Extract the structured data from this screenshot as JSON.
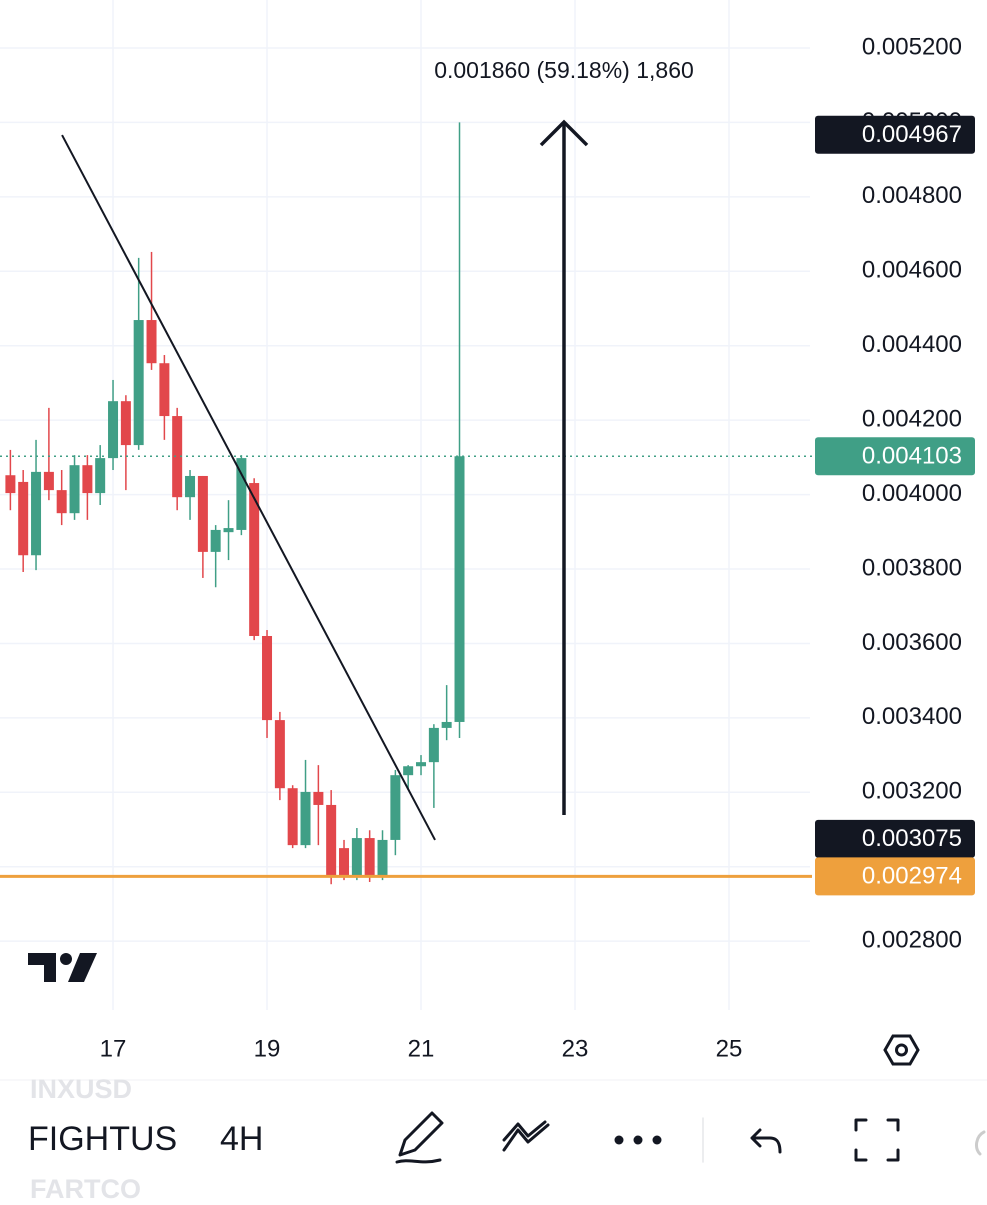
{
  "chart_data": {
    "type": "candlestick",
    "x": [
      15.667,
      15.833,
      16.0,
      16.167,
      16.333,
      16.5,
      16.667,
      16.833,
      17.0,
      17.167,
      17.333,
      17.5,
      17.667,
      17.833,
      18.0,
      18.167,
      18.333,
      18.5,
      18.667,
      18.833,
      19.0,
      19.167,
      19.333,
      19.5,
      19.667,
      19.833,
      20.0,
      20.167,
      20.333,
      20.5,
      20.667,
      20.833,
      21.0,
      21.167,
      21.333,
      21.5
    ],
    "open": [
      0.004052,
      0.004034,
      0.003837,
      0.004061,
      0.004012,
      0.00395,
      0.004079,
      0.004004,
      0.004098,
      0.004251,
      0.004133,
      0.004469,
      0.004353,
      0.004211,
      0.003993,
      0.00405,
      0.003846,
      0.003899,
      0.003905,
      0.004031,
      0.00362,
      0.003394,
      0.003211,
      0.003058,
      0.003201,
      0.003166,
      0.00305,
      0.002972,
      0.003077,
      0.002972,
      0.003072,
      0.003246,
      0.00327,
      0.003281,
      0.003373,
      0.003389
    ],
    "high": [
      0.00412,
      0.004066,
      0.004147,
      0.004233,
      0.004066,
      0.004106,
      0.004106,
      0.004133,
      0.004308,
      0.004267,
      0.004636,
      0.004652,
      0.004375,
      0.004233,
      0.004066,
      0.00405,
      0.003918,
      0.003985,
      0.004106,
      0.004044,
      0.003636,
      0.003416,
      0.003219,
      0.003287,
      0.003273,
      0.003206,
      0.003072,
      0.003104,
      0.003098,
      0.003098,
      0.00326,
      0.003273,
      0.0033,
      0.003383,
      0.003488,
      0.005
    ],
    "low": [
      0.003958,
      0.003792,
      0.003797,
      0.003985,
      0.003918,
      0.003932,
      0.003932,
      0.003972,
      0.004066,
      0.004012,
      0.00412,
      0.004335,
      0.004147,
      0.003958,
      0.003932,
      0.003776,
      0.003751,
      0.003824,
      0.003891,
      0.003609,
      0.003346,
      0.003179,
      0.00305,
      0.00305,
      0.003058,
      0.002953,
      0.002964,
      0.002964,
      0.002959,
      0.002964,
      0.003031,
      0.003206,
      0.003246,
      0.003158,
      0.00334,
      0.003346
    ],
    "close": [
      0.004004,
      0.003837,
      0.004061,
      0.004012,
      0.00395,
      0.004079,
      0.004004,
      0.004098,
      0.004251,
      0.004133,
      0.004469,
      0.004353,
      0.004211,
      0.003993,
      0.00405,
      0.003846,
      0.003905,
      0.00391,
      0.004098,
      0.00362,
      0.003394,
      0.003211,
      0.003058,
      0.003201,
      0.003166,
      0.002972,
      0.002972,
      0.003077,
      0.002972,
      0.003072,
      0.003246,
      0.00327,
      0.003281,
      0.003373,
      0.003389,
      0.004103
    ],
    "up_color": "#409f86",
    "down_color": "#e2474b",
    "xlim": [
      15.532,
      26.052
    ],
    "xticks": [
      17,
      19,
      21,
      23,
      25
    ],
    "ylim": [
      0.002615,
      0.005329
    ],
    "yticks": [
      {
        "value": 0.0052,
        "label": "0.005200"
      },
      {
        "value": 0.005,
        "label": "0.005000"
      },
      {
        "value": 0.0048,
        "label": "0.004800"
      },
      {
        "value": 0.0046,
        "label": "0.004600"
      },
      {
        "value": 0.0044,
        "label": "0.004400"
      },
      {
        "value": 0.0042,
        "label": "0.004200"
      },
      {
        "value": 0.004,
        "label": "0.004000"
      },
      {
        "value": 0.0038,
        "label": "0.003800"
      },
      {
        "value": 0.0036,
        "label": "0.003600"
      },
      {
        "value": 0.0034,
        "label": "0.003400"
      },
      {
        "value": 0.0032,
        "label": "0.003200"
      },
      {
        "value": 0.003,
        "label": "0.003000"
      },
      {
        "value": 0.0028,
        "label": "0.002800"
      }
    ],
    "grid": true,
    "price_labels": [
      {
        "value": 0.004967,
        "color": "#131722",
        "line": "none"
      },
      {
        "value": 0.004103,
        "color": "#409f86",
        "line": "dotted"
      },
      {
        "value": 0.003075,
        "color": "#131722",
        "line": "none"
      },
      {
        "value": 0.002974,
        "color": "#eea03d",
        "line": "solid"
      }
    ],
    "trendline": {
      "x": [
        16.338,
        21.182
      ],
      "y": [
        0.004966,
        0.003072
      ]
    },
    "measure": {
      "text": "0.001860 (59.18%) 1,860",
      "x": 22.857,
      "y": [
        0.003139,
        0.005001
      ]
    }
  },
  "toolbar": {
    "symbols": [
      "INXUSD",
      "FIGHTUS",
      "FARTCO"
    ],
    "interval": "4H"
  }
}
